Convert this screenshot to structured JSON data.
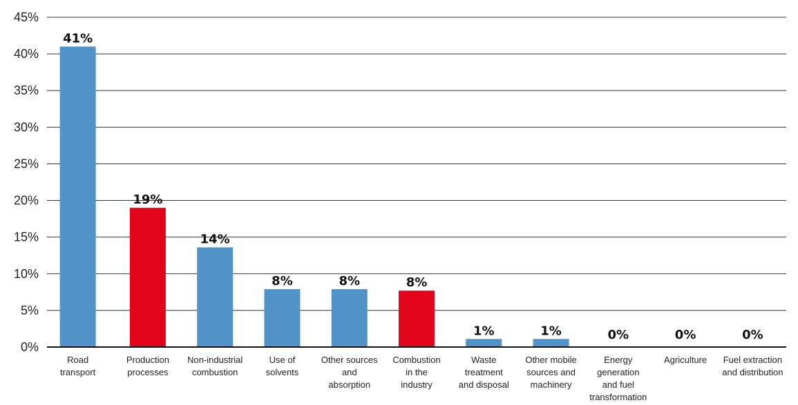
{
  "chart_data": {
    "type": "bar",
    "categories": [
      [
        "Road",
        "transport"
      ],
      [
        "Production",
        "processes"
      ],
      [
        "Non-industrial",
        "combustion"
      ],
      [
        "Use of",
        "solvents"
      ],
      [
        "Other sources",
        "and",
        "absorption"
      ],
      [
        "Combustion",
        "in the",
        "industry"
      ],
      [
        "Waste",
        "treatment",
        "and disposal"
      ],
      [
        "Other mobile",
        "sources and",
        "machinery"
      ],
      [
        "Energy",
        "generation",
        "and fuel",
        "transformation"
      ],
      [
        "Agriculture"
      ],
      [
        "Fuel extraction",
        "and distribution"
      ]
    ],
    "values": [
      41,
      19,
      13.6,
      7.9,
      7.9,
      7.7,
      1.1,
      1.1,
      0,
      0,
      0
    ],
    "data_labels": [
      "41%",
      "19%",
      "14%",
      "8%",
      "8%",
      "8%",
      "1%",
      "1%",
      "0%",
      "0%",
      "0%"
    ],
    "bar_colors": [
      "#4f93c9",
      "#e3051b",
      "#4f93c9",
      "#4f93c9",
      "#4f93c9",
      "#e3051b",
      "#4f93c9",
      "#4f93c9",
      "#4f93c9",
      "#4f93c9",
      "#4f93c9"
    ],
    "y_ticks": [
      0,
      5,
      10,
      15,
      20,
      25,
      30,
      35,
      40,
      45
    ],
    "y_tick_labels": [
      "0%",
      "5%",
      "10%",
      "15%",
      "20%",
      "25%",
      "30%",
      "35%",
      "40%",
      "45%"
    ],
    "ylim": [
      0,
      45
    ],
    "grid": true,
    "title": "",
    "xlabel": "",
    "ylabel": ""
  }
}
